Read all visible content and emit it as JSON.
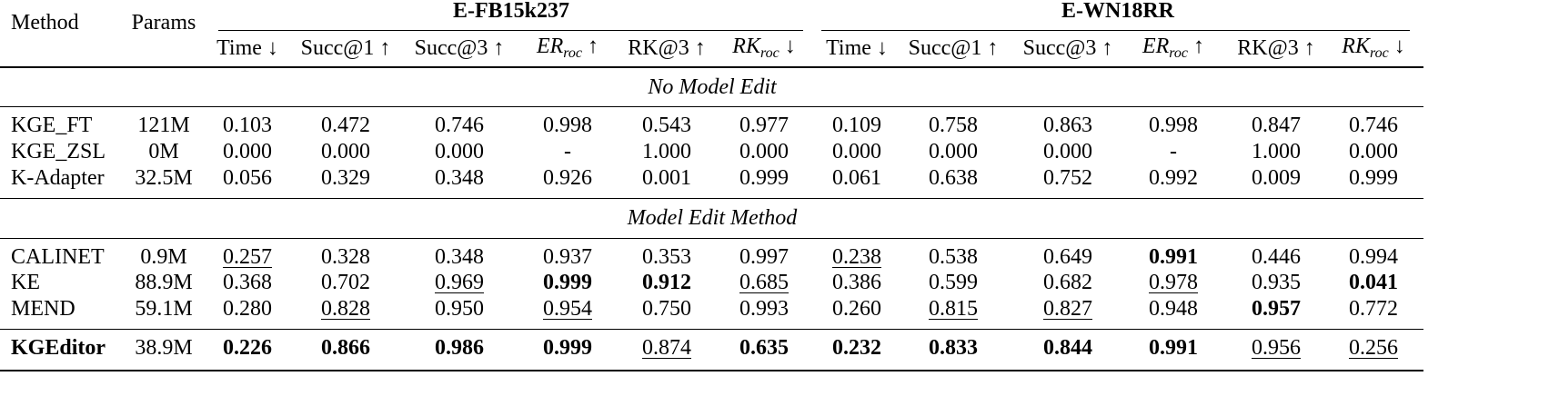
{
  "header": {
    "method": "Method",
    "params": "Params",
    "groups": [
      {
        "title": "E-FB15k237",
        "columns": [
          "Time ↓",
          "Succ@1 ↑",
          "Succ@3 ↑",
          {
            "text": "ER",
            "sub": "roc",
            "arrow": "↑"
          },
          "RK@3 ↑",
          {
            "text": "RK",
            "sub": "roc",
            "arrow": "↓"
          }
        ]
      },
      {
        "title": "E-WN18RR",
        "columns": [
          "Time ↓",
          "Succ@1 ↑",
          "Succ@3 ↑",
          {
            "text": "ER",
            "sub": "roc",
            "arrow": "↑"
          },
          "RK@3 ↑",
          {
            "text": "RK",
            "sub": "roc",
            "arrow": "↓"
          }
        ]
      }
    ]
  },
  "sections": [
    {
      "title": "No Model Edit",
      "rows": [
        {
          "method": "KGE_FT",
          "params": "121M",
          "cells": [
            "0.103",
            "0.472",
            "0.746",
            "0.998",
            "0.543",
            "0.977",
            "0.109",
            "0.758",
            "0.863",
            "0.998",
            "0.847",
            "0.746"
          ]
        },
        {
          "method": "KGE_ZSL",
          "params": "0M",
          "cells": [
            "0.000",
            "0.000",
            "0.000",
            "-",
            "1.000",
            "0.000",
            "0.000",
            "0.000",
            "0.000",
            "-",
            "1.000",
            "0.000"
          ]
        },
        {
          "method": "K-Adapter",
          "params": "32.5M",
          "cells": [
            "0.056",
            "0.329",
            "0.348",
            "0.926",
            "0.001",
            "0.999",
            "0.061",
            "0.638",
            "0.752",
            "0.992",
            "0.009",
            "0.999"
          ]
        }
      ]
    },
    {
      "title": "Model Edit Method",
      "rows": [
        {
          "method": "CALINET",
          "params": "0.9M",
          "cells": [
            {
              "text": "0.257",
              "underline": true
            },
            "0.328",
            "0.348",
            "0.937",
            "0.353",
            "0.997",
            {
              "text": "0.238",
              "underline": true
            },
            "0.538",
            "0.649",
            {
              "text": "0.991",
              "bold": true
            },
            "0.446",
            "0.994"
          ]
        },
        {
          "method": "KE",
          "params": "88.9M",
          "cells": [
            "0.368",
            "0.702",
            {
              "text": "0.969",
              "underline": true
            },
            {
              "text": "0.999",
              "bold": true
            },
            {
              "text": "0.912",
              "bold": true
            },
            {
              "text": "0.685",
              "underline": true
            },
            "0.386",
            "0.599",
            "0.682",
            {
              "text": "0.978",
              "underline": true
            },
            "0.935",
            {
              "text": "0.041",
              "bold": true
            }
          ]
        },
        {
          "method": "MEND",
          "params": "59.1M",
          "cells": [
            "0.280",
            {
              "text": "0.828",
              "underline": true
            },
            "0.950",
            {
              "text": "0.954",
              "underline": true
            },
            "0.750",
            "0.993",
            "0.260",
            {
              "text": "0.815",
              "underline": true
            },
            {
              "text": "0.827",
              "underline": true
            },
            "0.948",
            {
              "text": "0.957",
              "bold": true
            },
            "0.772"
          ]
        }
      ]
    },
    {
      "rows": [
        {
          "method": {
            "text": "KGEditor",
            "bold": true
          },
          "params": "38.9M",
          "cells": [
            {
              "text": "0.226",
              "bold": true
            },
            {
              "text": "0.866",
              "bold": true
            },
            {
              "text": "0.986",
              "bold": true
            },
            {
              "text": "0.999",
              "bold": true
            },
            {
              "text": "0.874",
              "underline": true
            },
            {
              "text": "0.635",
              "bold": true
            },
            {
              "text": "0.232",
              "bold": true
            },
            {
              "text": "0.833",
              "bold": true
            },
            {
              "text": "0.844",
              "bold": true
            },
            {
              "text": "0.991",
              "bold": true
            },
            {
              "text": "0.956",
              "underline": true
            },
            {
              "text": "0.256",
              "underline": true
            }
          ]
        }
      ]
    }
  ]
}
